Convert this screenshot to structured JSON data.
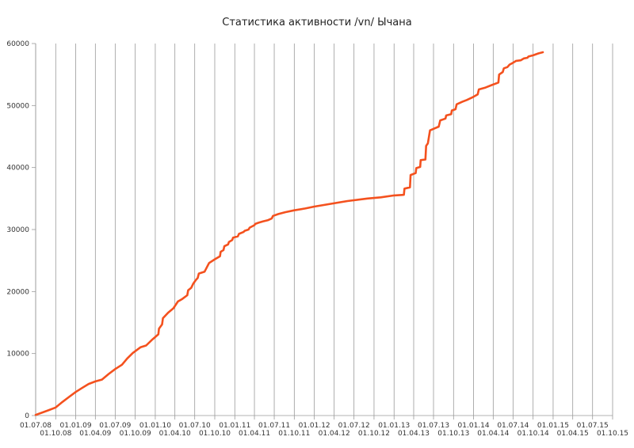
{
  "chart_data": {
    "type": "line",
    "title": "Статистика активности /vn/ Ычана",
    "xlabel": "",
    "ylabel": "",
    "ylim": [
      0,
      60000
    ],
    "y_ticks": [
      0,
      10000,
      20000,
      30000,
      40000,
      50000,
      60000
    ],
    "x_ticks": [
      "01.07.08",
      "01.10.08",
      "01.01.09",
      "01.04.09",
      "01.07.09",
      "01.10.09",
      "01.01.10",
      "01.04.10",
      "01.07.10",
      "01.10.10",
      "01.01.11",
      "01.04.11",
      "01.07.11",
      "01.10.11",
      "01.01.12",
      "01.04.12",
      "01.07.12",
      "01.10.12",
      "01.01.13",
      "01.04.13",
      "01.07.13",
      "01.10.13",
      "01.01.14",
      "01.04.14",
      "01.07.14",
      "01.10.14",
      "01.01.15",
      "01.04.15",
      "01.07.15",
      "01.10.15"
    ],
    "grid": "vertical",
    "legend": "none",
    "series": [
      {
        "color": "#F4511E",
        "points": [
          [
            "2008-07-01",
            100
          ],
          [
            "2008-08-01",
            500
          ],
          [
            "2008-09-01",
            900
          ],
          [
            "2008-10-01",
            1300
          ],
          [
            "2008-11-01",
            2200
          ],
          [
            "2008-12-01",
            3000
          ],
          [
            "2009-01-01",
            3800
          ],
          [
            "2009-02-01",
            4500
          ],
          [
            "2009-03-01",
            5100
          ],
          [
            "2009-04-01",
            5500
          ],
          [
            "2009-05-01",
            5800
          ],
          [
            "2009-06-01",
            6700
          ],
          [
            "2009-07-01",
            7500
          ],
          [
            "2009-08-01",
            8200
          ],
          [
            "2009-08-25",
            9200
          ],
          [
            "2009-09-20",
            10100
          ],
          [
            "2009-10-25",
            11000
          ],
          [
            "2009-11-20",
            11300
          ],
          [
            "2009-12-20",
            12300
          ],
          [
            "2010-01-15",
            13100
          ],
          [
            "2010-01-18",
            14000
          ],
          [
            "2010-02-01",
            14700
          ],
          [
            "2010-02-05",
            15700
          ],
          [
            "2010-03-01",
            16600
          ],
          [
            "2010-03-25",
            17300
          ],
          [
            "2010-04-15",
            18400
          ],
          [
            "2010-05-05",
            18800
          ],
          [
            "2010-05-28",
            19400
          ],
          [
            "2010-06-01",
            20200
          ],
          [
            "2010-06-15",
            20600
          ],
          [
            "2010-06-25",
            21300
          ],
          [
            "2010-07-05",
            21800
          ],
          [
            "2010-07-15",
            22200
          ],
          [
            "2010-07-20",
            22900
          ],
          [
            "2010-08-15",
            23200
          ],
          [
            "2010-09-05",
            24600
          ],
          [
            "2010-10-01",
            25200
          ],
          [
            "2010-10-25",
            25700
          ],
          [
            "2010-10-28",
            26400
          ],
          [
            "2010-11-10",
            26700
          ],
          [
            "2010-11-14",
            27300
          ],
          [
            "2010-12-01",
            27600
          ],
          [
            "2010-12-05",
            28000
          ],
          [
            "2010-12-20",
            28300
          ],
          [
            "2010-12-24",
            28700
          ],
          [
            "2011-01-15",
            28900
          ],
          [
            "2011-01-20",
            29300
          ],
          [
            "2011-02-10",
            29600
          ],
          [
            "2011-02-15",
            29800
          ],
          [
            "2011-03-05",
            30000
          ],
          [
            "2011-03-10",
            30300
          ],
          [
            "2011-04-01",
            30700
          ],
          [
            "2011-04-05",
            30900
          ],
          [
            "2011-04-20",
            31100
          ],
          [
            "2011-05-10",
            31300
          ],
          [
            "2011-06-01",
            31500
          ],
          [
            "2011-06-20",
            31800
          ],
          [
            "2011-06-25",
            32200
          ],
          [
            "2011-07-20",
            32500
          ],
          [
            "2011-08-20",
            32800
          ],
          [
            "2011-10-01",
            33100
          ],
          [
            "2011-11-20",
            33400
          ],
          [
            "2012-01-01",
            33700
          ],
          [
            "2012-06-01",
            34600
          ],
          [
            "2012-09-01",
            35000
          ],
          [
            "2012-11-01",
            35200
          ],
          [
            "2013-01-01",
            35500
          ],
          [
            "2013-02-15",
            35600
          ],
          [
            "2013-02-18",
            36600
          ],
          [
            "2013-03-15",
            36800
          ],
          [
            "2013-03-18",
            38800
          ],
          [
            "2013-04-10",
            39100
          ],
          [
            "2013-04-13",
            39900
          ],
          [
            "2013-05-01",
            40100
          ],
          [
            "2013-05-03",
            41200
          ],
          [
            "2013-05-25",
            41300
          ],
          [
            "2013-05-28",
            43500
          ],
          [
            "2013-06-05",
            43900
          ],
          [
            "2013-06-15",
            46000
          ],
          [
            "2013-07-25",
            46600
          ],
          [
            "2013-08-01",
            47600
          ],
          [
            "2013-08-25",
            47900
          ],
          [
            "2013-08-28",
            48400
          ],
          [
            "2013-09-20",
            48600
          ],
          [
            "2013-09-23",
            49200
          ],
          [
            "2013-10-10",
            49400
          ],
          [
            "2013-10-15",
            50200
          ],
          [
            "2013-11-10",
            50600
          ],
          [
            "2013-12-01",
            50900
          ],
          [
            "2013-12-25",
            51300
          ],
          [
            "2014-01-20",
            51800
          ],
          [
            "2014-01-25",
            52600
          ],
          [
            "2014-02-25",
            52900
          ],
          [
            "2014-03-25",
            53300
          ],
          [
            "2014-04-25",
            53700
          ],
          [
            "2014-04-28",
            55000
          ],
          [
            "2014-05-15",
            55400
          ],
          [
            "2014-05-20",
            56000
          ],
          [
            "2014-06-05",
            56200
          ],
          [
            "2014-06-15",
            56600
          ],
          [
            "2014-07-01",
            56900
          ],
          [
            "2014-07-15",
            57200
          ],
          [
            "2014-08-05",
            57300
          ],
          [
            "2014-08-20",
            57600
          ],
          [
            "2014-09-05",
            57700
          ],
          [
            "2014-09-10",
            57900
          ],
          [
            "2014-10-01",
            58100
          ],
          [
            "2014-10-25",
            58400
          ],
          [
            "2014-11-15",
            58600
          ]
        ]
      }
    ]
  }
}
